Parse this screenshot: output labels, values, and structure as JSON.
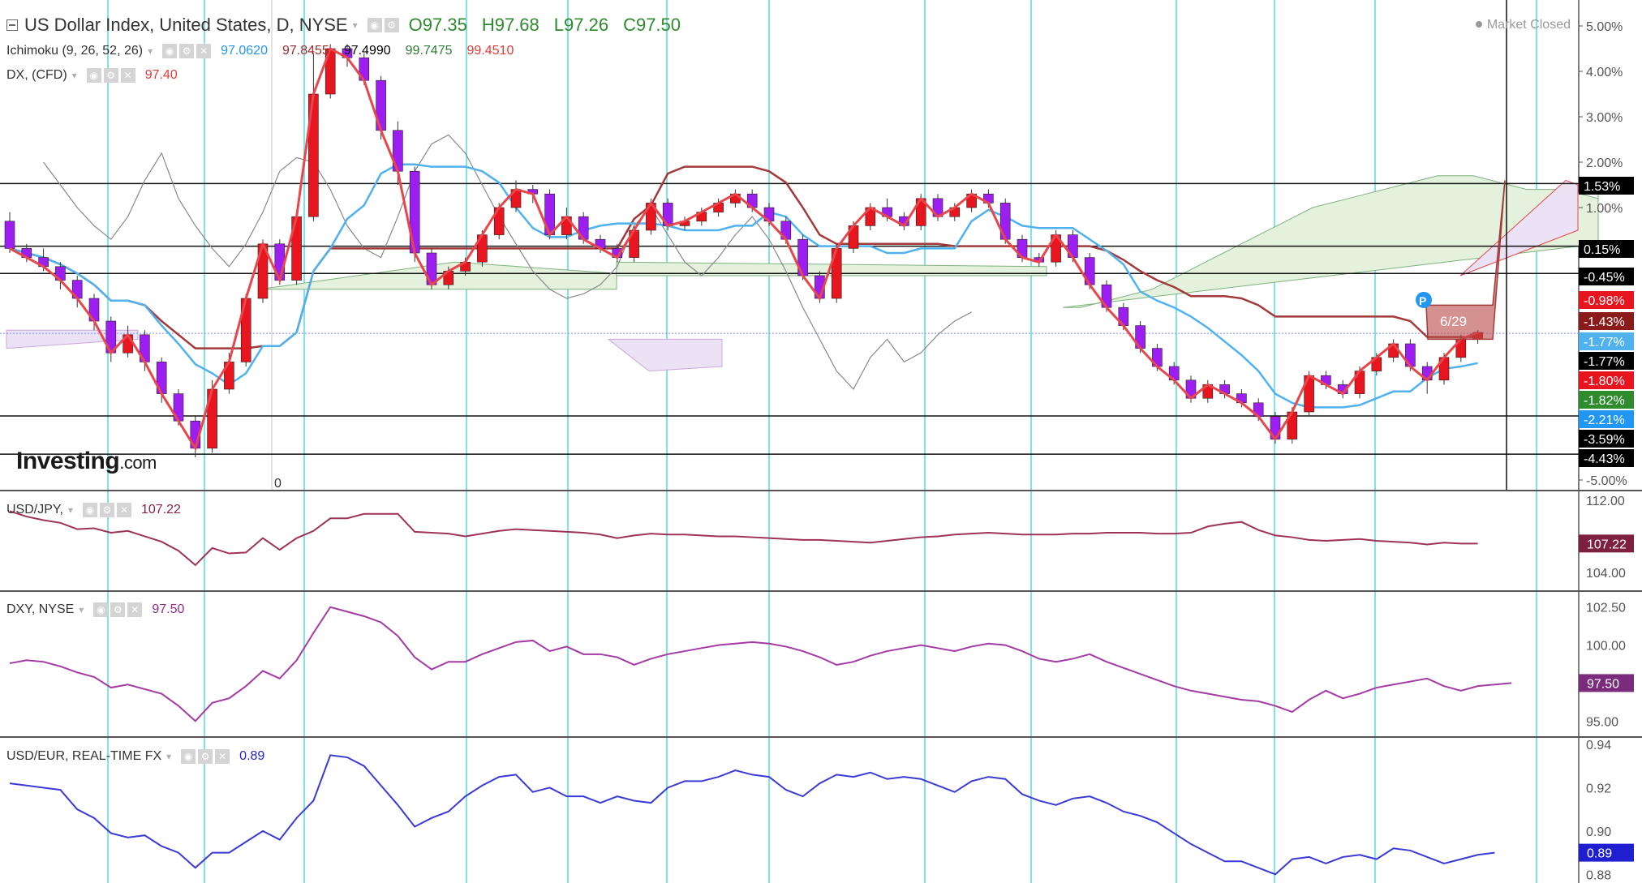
{
  "header": {
    "title": "US Dollar Index, United States, D, NYSE",
    "ohlc": [
      "O97.35",
      "H97.68",
      "L97.26",
      "C97.50"
    ],
    "status": "Market Closed"
  },
  "legends": {
    "ichimoku": {
      "name": "Ichimoku (9, 26, 52, 26)",
      "values": [
        "97.0620",
        "97.8455",
        "97.4990",
        "99.7475",
        "99.4510"
      ],
      "colors": [
        "#2196f3",
        "#9c2a2a",
        "#000000",
        "#2e7d32",
        "#e53935"
      ]
    },
    "dx": {
      "name": "DX, (CFD)",
      "value": "97.40",
      "color": "#e53935"
    },
    "usdjpy": {
      "name": "USD/JPY,",
      "value": "107.22",
      "color": "#8b2244"
    },
    "dxy": {
      "name": "DXY, NYSE",
      "value": "97.50",
      "color": "#8e2c8e"
    },
    "usdeur": {
      "name": "USD/EUR, REAL-TIME FX",
      "value": "0.89",
      "color": "#2222cc"
    }
  },
  "logo": {
    "main": "Investing",
    "suffix": ".com"
  },
  "origin_label": "0",
  "note_label": "6/29",
  "marker_label": "P",
  "colors": {
    "up": "#e8141e",
    "down": "#9d1ef0",
    "red_line": "#e8464a",
    "blue_line": "#4fb2ee",
    "cloud_green": "#e3f1dd",
    "cloud_pink": "#ece2f5",
    "grid_cyan": "#7fe3e8",
    "usdjpy": "#9e3356",
    "dxy": "#a43aa4",
    "usdeur": "#3a3ad6"
  },
  "chart_data": [
    {
      "type": "candlestick",
      "title": "US Dollar Index, United States, D, NYSE",
      "y_axis": {
        "unit": "percent",
        "ticks": [
          "5.00%",
          "4.00%",
          "3.00%",
          "2.00%",
          "1.00%",
          "-5.00%"
        ],
        "ylim": [
          -5,
          5
        ]
      },
      "price_lines": [
        {
          "label": "1.53%",
          "value": 1.53,
          "color": "#000000"
        },
        {
          "label": "0.15%",
          "value": 0.15,
          "color": "#000000"
        },
        {
          "label": "-0.45%",
          "value": -0.45,
          "color": "#000000"
        },
        {
          "label": "-0.98%",
          "value": -0.98,
          "color": "#e8141e"
        },
        {
          "label": "-1.43%",
          "value": -1.43,
          "color": "#8b1a1a"
        },
        {
          "label": "-1.77%",
          "value": -1.77,
          "color": "#4fb2ee"
        },
        {
          "label": "-1.77%",
          "value": -1.77,
          "color": "#000000"
        },
        {
          "label": "-1.80%",
          "value": -1.8,
          "color": "#e8141e"
        },
        {
          "label": "-1.82%",
          "value": -1.82,
          "color": "#2e8b2e"
        },
        {
          "label": "-2.21%",
          "value": -2.21,
          "color": "#2196f3"
        },
        {
          "label": "-3.59%",
          "value": -3.59,
          "color": "#000000"
        },
        {
          "label": "-4.43%",
          "value": -4.43,
          "color": "#000000"
        }
      ],
      "candles": [
        [
          0.7,
          0.1,
          0.9,
          0.0
        ],
        [
          0.1,
          -0.1,
          0.2,
          -0.2
        ],
        [
          -0.1,
          -0.3,
          0.1,
          -0.4
        ],
        [
          -0.3,
          -0.6,
          -0.2,
          -0.8
        ],
        [
          -0.6,
          -1.0,
          -0.5,
          -1.2
        ],
        [
          -1.0,
          -1.5,
          -0.9,
          -1.7
        ],
        [
          -1.5,
          -2.2,
          -1.4,
          -2.4
        ],
        [
          -2.2,
          -1.8,
          -1.6,
          -2.3
        ],
        [
          -1.8,
          -2.4,
          -1.7,
          -2.6
        ],
        [
          -2.4,
          -3.1,
          -2.3,
          -3.3
        ],
        [
          -3.1,
          -3.7,
          -3.0,
          -3.8
        ],
        [
          -3.7,
          -4.3,
          -3.6,
          -4.5
        ],
        [
          -4.3,
          -3.0,
          -2.8,
          -4.4
        ],
        [
          -3.0,
          -2.4,
          -2.2,
          -3.1
        ],
        [
          -2.4,
          -1.0,
          -0.9,
          -2.5
        ],
        [
          -1.0,
          0.2,
          0.3,
          -1.1
        ],
        [
          0.2,
          -0.6,
          0.3,
          -0.7
        ],
        [
          -0.6,
          0.8,
          0.9,
          -0.7
        ],
        [
          0.8,
          3.5,
          4.4,
          0.7
        ],
        [
          3.5,
          4.5,
          4.6,
          3.4
        ],
        [
          4.5,
          4.3,
          4.6,
          4.1
        ],
        [
          4.3,
          3.8,
          4.4,
          3.7
        ],
        [
          3.8,
          2.7,
          3.9,
          2.5
        ],
        [
          2.7,
          1.8,
          2.9,
          1.5
        ],
        [
          1.8,
          0.0,
          1.9,
          -0.2
        ],
        [
          0.0,
          -0.7,
          0.1,
          -0.8
        ],
        [
          -0.7,
          -0.4,
          -0.3,
          -0.8
        ],
        [
          -0.4,
          -0.2,
          -0.1,
          -0.5
        ],
        [
          -0.2,
          0.4,
          0.5,
          -0.3
        ],
        [
          0.4,
          1.0,
          1.1,
          0.3
        ],
        [
          1.0,
          1.4,
          1.6,
          0.9
        ],
        [
          1.4,
          1.3,
          1.5,
          1.1
        ],
        [
          1.3,
          0.4,
          1.4,
          0.3
        ],
        [
          0.4,
          0.8,
          1.0,
          0.3
        ],
        [
          0.8,
          0.3,
          0.9,
          0.2
        ],
        [
          0.3,
          0.1,
          0.4,
          0.0
        ],
        [
          0.1,
          -0.1,
          0.2,
          -0.2
        ],
        [
          -0.1,
          0.5,
          0.6,
          -0.2
        ],
        [
          0.5,
          1.1,
          1.2,
          0.4
        ],
        [
          1.1,
          0.6,
          1.2,
          0.5
        ],
        [
          0.6,
          0.7,
          0.8,
          0.5
        ],
        [
          0.7,
          0.9,
          1.0,
          0.6
        ],
        [
          0.9,
          1.1,
          1.2,
          0.8
        ],
        [
          1.1,
          1.3,
          1.4,
          1.0
        ],
        [
          1.3,
          1.0,
          1.4,
          0.9
        ],
        [
          1.0,
          0.7,
          1.1,
          0.6
        ],
        [
          0.7,
          0.3,
          0.8,
          0.2
        ],
        [
          0.3,
          -0.5,
          0.4,
          -0.6
        ],
        [
          -0.5,
          -1.0,
          -0.4,
          -1.1
        ],
        [
          -1.0,
          0.1,
          0.2,
          -1.1
        ],
        [
          0.1,
          0.6,
          0.7,
          0.0
        ],
        [
          0.6,
          1.0,
          1.1,
          0.5
        ],
        [
          1.0,
          0.8,
          1.2,
          0.7
        ],
        [
          0.8,
          0.6,
          0.9,
          0.5
        ],
        [
          0.6,
          1.2,
          1.3,
          0.5
        ],
        [
          1.2,
          0.8,
          1.3,
          0.7
        ],
        [
          0.8,
          1.0,
          1.1,
          0.7
        ],
        [
          1.0,
          1.3,
          1.4,
          0.9
        ],
        [
          1.3,
          1.1,
          1.4,
          1.0
        ],
        [
          1.1,
          0.3,
          1.2,
          0.2
        ],
        [
          0.3,
          -0.1,
          0.4,
          -0.2
        ],
        [
          -0.1,
          -0.2,
          0.0,
          -0.3
        ],
        [
          -0.2,
          0.4,
          0.5,
          -0.3
        ],
        [
          0.4,
          -0.1,
          0.5,
          -0.2
        ],
        [
          -0.1,
          -0.7,
          0.0,
          -0.8
        ],
        [
          -0.7,
          -1.2,
          -0.6,
          -1.3
        ],
        [
          -1.2,
          -1.6,
          -1.1,
          -1.7
        ],
        [
          -1.6,
          -2.1,
          -1.5,
          -2.2
        ],
        [
          -2.1,
          -2.5,
          -2.0,
          -2.6
        ],
        [
          -2.5,
          -2.8,
          -2.4,
          -2.9
        ],
        [
          -2.8,
          -3.2,
          -2.7,
          -3.3
        ],
        [
          -3.2,
          -2.9,
          -2.8,
          -3.3
        ],
        [
          -2.9,
          -3.1,
          -2.8,
          -3.2
        ],
        [
          -3.1,
          -3.3,
          -3.0,
          -3.4
        ],
        [
          -3.3,
          -3.6,
          -3.2,
          -3.7
        ],
        [
          -3.6,
          -4.1,
          -3.5,
          -4.2
        ],
        [
          -4.1,
          -3.5,
          -3.4,
          -4.2
        ],
        [
          -3.5,
          -2.7,
          -2.6,
          -3.6
        ],
        [
          -2.7,
          -2.9,
          -2.6,
          -3.0
        ],
        [
          -2.9,
          -3.1,
          -2.8,
          -3.2
        ],
        [
          -3.1,
          -2.6,
          -2.5,
          -3.2
        ],
        [
          -2.6,
          -2.3,
          -2.2,
          -2.7
        ],
        [
          -2.3,
          -2.0,
          -1.9,
          -2.4
        ],
        [
          -2.0,
          -2.5,
          -1.9,
          -2.6
        ],
        [
          -2.5,
          -2.8,
          -2.4,
          -3.1
        ],
        [
          -2.8,
          -2.3,
          -2.2,
          -2.9
        ],
        [
          -2.3,
          -1.9,
          -1.8,
          -2.4
        ],
        [
          -1.9,
          -1.75,
          -1.7,
          -2.0
        ]
      ]
    },
    {
      "type": "line",
      "title": "USD/JPY,",
      "y_axis": {
        "ticks": [
          "112.00",
          "104.00"
        ],
        "ylim": [
          102,
          113
        ]
      },
      "series": [
        {
          "name": "USD/JPY,",
          "values": [
            110.8,
            110.2,
            109.8,
            109.5,
            108.8,
            108.9,
            108.4,
            108.6,
            108.0,
            107.4,
            106.4,
            104.8,
            106.7,
            106.1,
            106.2,
            107.8,
            106.5,
            107.8,
            108.6,
            110.0,
            110.0,
            110.5,
            110.5,
            110.5,
            108.5,
            108.4,
            108.3,
            108.0,
            108.3,
            108.6,
            108.8,
            108.7,
            108.6,
            108.5,
            108.4,
            108.2,
            107.8,
            108.1,
            108.3,
            108.2,
            108.2,
            108.1,
            108.0,
            108.0,
            107.9,
            107.8,
            107.7,
            107.6,
            107.6,
            107.5,
            107.4,
            107.3,
            107.5,
            107.7,
            107.9,
            108.0,
            108.2,
            108.3,
            108.4,
            108.3,
            108.2,
            108.2,
            108.2,
            108.3,
            108.3,
            108.4,
            108.4,
            108.4,
            108.3,
            108.3,
            108.4,
            109.1,
            109.4,
            109.6,
            108.7,
            108.1,
            107.9,
            107.6,
            107.5,
            107.6,
            107.7,
            107.5,
            107.4,
            107.3,
            107.1,
            107.3,
            107.2,
            107.2
          ]
        }
      ],
      "last_value": "107.22"
    },
    {
      "type": "line",
      "title": "DXY, NYSE",
      "y_axis": {
        "ticks": [
          "102.50",
          "100.00",
          "97.50",
          "95.00"
        ],
        "ylim": [
          94,
          103.5
        ]
      },
      "series": [
        {
          "name": "DXY, NYSE",
          "values": [
            98.8,
            99.0,
            98.9,
            98.6,
            98.2,
            97.9,
            97.2,
            97.4,
            97.1,
            96.8,
            96.0,
            95.0,
            96.2,
            96.5,
            97.3,
            98.3,
            97.8,
            99.0,
            100.8,
            102.5,
            102.2,
            101.9,
            101.5,
            100.6,
            99.2,
            98.4,
            98.9,
            98.9,
            99.4,
            99.8,
            100.2,
            100.3,
            99.6,
            99.9,
            99.4,
            99.4,
            99.2,
            98.7,
            99.1,
            99.4,
            99.6,
            99.8,
            100.0,
            100.1,
            100.2,
            100.1,
            99.9,
            99.6,
            99.2,
            98.7,
            98.9,
            99.3,
            99.6,
            99.8,
            100.0,
            99.8,
            99.6,
            99.9,
            100.1,
            100.0,
            99.6,
            99.1,
            98.9,
            99.1,
            99.4,
            98.9,
            98.5,
            98.1,
            97.7,
            97.3,
            97.0,
            96.8,
            96.6,
            96.4,
            96.3,
            96.0,
            95.6,
            96.4,
            97.0,
            96.5,
            96.8,
            97.2,
            97.4,
            97.6,
            97.8,
            97.3,
            97.0,
            97.3,
            97.4,
            97.5
          ]
        }
      ],
      "last_value": "97.50"
    },
    {
      "type": "line",
      "title": "USD/EUR, REAL-TIME FX",
      "y_axis": {
        "ticks": [
          "0.94",
          "0.92",
          "0.90",
          "0.88"
        ],
        "ylim": [
          0.876,
          0.943
        ]
      },
      "series": [
        {
          "name": "USD/EUR, REAL-TIME FX",
          "values": [
            0.922,
            0.921,
            0.92,
            0.919,
            0.91,
            0.906,
            0.899,
            0.897,
            0.898,
            0.893,
            0.89,
            0.883,
            0.89,
            0.89,
            0.895,
            0.9,
            0.896,
            0.906,
            0.914,
            0.935,
            0.934,
            0.93,
            0.921,
            0.912,
            0.902,
            0.906,
            0.909,
            0.916,
            0.921,
            0.925,
            0.926,
            0.918,
            0.92,
            0.916,
            0.916,
            0.913,
            0.916,
            0.914,
            0.913,
            0.92,
            0.923,
            0.923,
            0.925,
            0.928,
            0.926,
            0.925,
            0.919,
            0.916,
            0.922,
            0.926,
            0.925,
            0.927,
            0.924,
            0.925,
            0.924,
            0.921,
            0.918,
            0.923,
            0.925,
            0.924,
            0.917,
            0.914,
            0.912,
            0.915,
            0.916,
            0.913,
            0.909,
            0.907,
            0.904,
            0.899,
            0.894,
            0.89,
            0.886,
            0.886,
            0.883,
            0.88,
            0.887,
            0.888,
            0.885,
            0.888,
            0.889,
            0.887,
            0.892,
            0.891,
            0.888,
            0.885,
            0.887,
            0.889,
            0.89
          ]
        }
      ],
      "last_value": "0.89"
    }
  ]
}
